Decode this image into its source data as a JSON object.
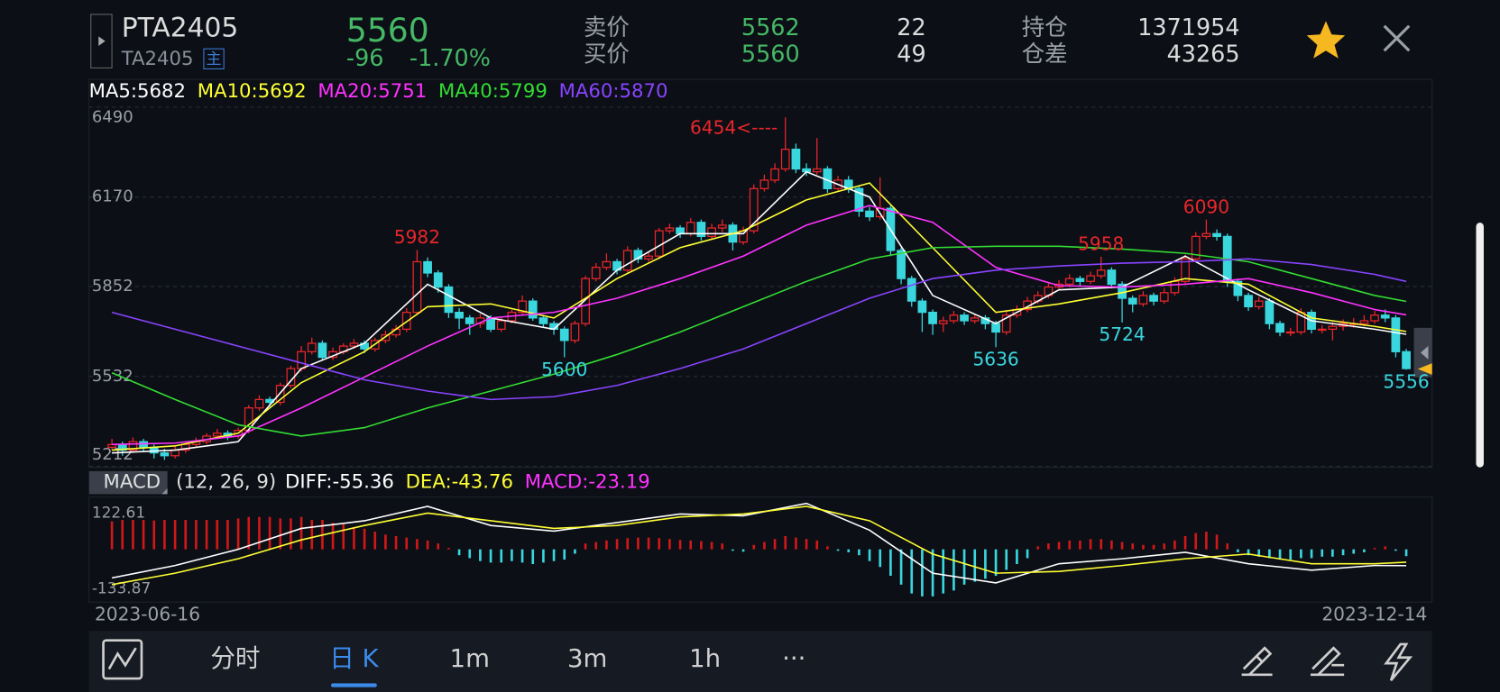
{
  "header": {
    "symbol": "PTA2405",
    "code": "TA2405",
    "main_tag": "主",
    "last_price": 5560,
    "change": -96,
    "change_pct": {
      "value": -1.7,
      "label": "-1.70%"
    },
    "ask_label": "卖价",
    "ask_price": 5562,
    "ask_volume": 22,
    "bid_label": "买价",
    "bid_price": 5560,
    "bid_volume": 49,
    "open_interest_label": "持仓",
    "open_interest": 1371954,
    "oi_change_label": "仓差",
    "oi_change": 43265
  },
  "chart_data": [
    {
      "type": "candlestick",
      "up_color": "#e8262a",
      "down_color": "#3ad6de",
      "ylim": [
        5212,
        6490
      ],
      "yticks": [
        6490,
        6170,
        5852,
        5532,
        5212
      ],
      "grid": true,
      "open": [
        5280,
        5290,
        5270,
        5300,
        5280,
        5260,
        5250,
        5270,
        5290,
        5300,
        5320,
        5330,
        5320,
        5340,
        5420,
        5450,
        5440,
        5500,
        5560,
        5620,
        5650,
        5600,
        5620,
        5640,
        5650,
        5630,
        5660,
        5680,
        5700,
        5760,
        5940,
        5900,
        5850,
        5760,
        5740,
        5720,
        5740,
        5700,
        5730,
        5760,
        5800,
        5740,
        5720,
        5700,
        5660,
        5720,
        5880,
        5920,
        5940,
        5910,
        5980,
        5950,
        5960,
        6050,
        6060,
        6040,
        6080,
        6030,
        6060,
        6070,
        6010,
        6050,
        6200,
        6230,
        6270,
        6340,
        6270,
        6260,
        6270,
        6200,
        6230,
        6200,
        6120,
        6100,
        6130,
        5980,
        5880,
        5800,
        5760,
        5720,
        5730,
        5750,
        5730,
        5740,
        5720,
        5690,
        5750,
        5770,
        5800,
        5820,
        5850,
        5860,
        5880,
        5870,
        5890,
        5910,
        5860,
        5810,
        5790,
        5820,
        5800,
        5830,
        5870,
        5950,
        6030,
        6040,
        6030,
        5870,
        5820,
        5780,
        5800,
        5720,
        5690,
        5690,
        5760,
        5700,
        5700,
        5710,
        5720,
        5720,
        5730,
        5750,
        5740,
        5620
      ],
      "high": [
        5310,
        5300,
        5315,
        5310,
        5290,
        5275,
        5285,
        5300,
        5315,
        5330,
        5345,
        5340,
        5350,
        5430,
        5465,
        5460,
        5510,
        5570,
        5640,
        5670,
        5660,
        5635,
        5650,
        5665,
        5660,
        5670,
        5695,
        5715,
        5775,
        5982,
        5955,
        5910,
        5860,
        5775,
        5750,
        5755,
        5750,
        5745,
        5770,
        5820,
        5810,
        5750,
        5730,
        5710,
        5730,
        5890,
        5935,
        5970,
        5950,
        5995,
        5990,
        5975,
        6060,
        6075,
        6070,
        6095,
        6090,
        6075,
        6090,
        6080,
        6065,
        6215,
        6250,
        6290,
        6454,
        6360,
        6290,
        6380,
        6280,
        6245,
        6245,
        6210,
        6135,
        6240,
        6140,
        5990,
        5890,
        5810,
        5770,
        5745,
        5765,
        5760,
        5755,
        5750,
        5730,
        5765,
        5785,
        5815,
        5835,
        5865,
        5875,
        5895,
        5890,
        5905,
        5958,
        5920,
        5870,
        5820,
        5835,
        5830,
        5845,
        5885,
        5965,
        6045,
        6090,
        6055,
        6040,
        5880,
        5830,
        5815,
        5810,
        5730,
        5705,
        5775,
        5770,
        5715,
        5725,
        5735,
        5740,
        5750,
        5765,
        5770,
        5750,
        5630
      ],
      "low": [
        5270,
        5250,
        5260,
        5265,
        5240,
        5235,
        5240,
        5260,
        5280,
        5290,
        5310,
        5305,
        5310,
        5330,
        5410,
        5425,
        5430,
        5490,
        5550,
        5610,
        5590,
        5590,
        5610,
        5630,
        5615,
        5620,
        5650,
        5670,
        5690,
        5750,
        5885,
        5830,
        5740,
        5700,
        5680,
        5705,
        5690,
        5690,
        5720,
        5750,
        5730,
        5705,
        5680,
        5600,
        5650,
        5710,
        5870,
        5910,
        5895,
        5900,
        5935,
        5940,
        5950,
        6040,
        6025,
        6030,
        6015,
        6020,
        6045,
        5980,
        6000,
        6040,
        6190,
        6220,
        6260,
        6255,
        6245,
        6250,
        6185,
        6190,
        6185,
        6100,
        6085,
        6090,
        5960,
        5860,
        5780,
        5690,
        5680,
        5690,
        5720,
        5715,
        5720,
        5700,
        5636,
        5680,
        5740,
        5760,
        5790,
        5810,
        5840,
        5850,
        5855,
        5860,
        5880,
        5845,
        5724,
        5760,
        5780,
        5785,
        5790,
        5820,
        5860,
        5940,
        6020,
        6015,
        5850,
        5800,
        5765,
        5770,
        5700,
        5675,
        5675,
        5680,
        5685,
        5685,
        5660,
        5695,
        5705,
        5710,
        5720,
        5725,
        5600,
        5556
      ],
      "close": [
        5290,
        5270,
        5300,
        5280,
        5260,
        5250,
        5270,
        5290,
        5300,
        5320,
        5330,
        5320,
        5340,
        5420,
        5450,
        5440,
        5500,
        5560,
        5620,
        5650,
        5600,
        5620,
        5640,
        5650,
        5630,
        5660,
        5680,
        5700,
        5760,
        5940,
        5900,
        5850,
        5760,
        5740,
        5720,
        5740,
        5700,
        5730,
        5760,
        5800,
        5740,
        5720,
        5700,
        5660,
        5720,
        5880,
        5920,
        5940,
        5910,
        5980,
        5950,
        5960,
        6050,
        6060,
        6040,
        6080,
        6030,
        6060,
        6070,
        6010,
        6050,
        6200,
        6230,
        6270,
        6340,
        6270,
        6260,
        6270,
        6200,
        6230,
        6200,
        6120,
        6100,
        6130,
        5980,
        5880,
        5800,
        5760,
        5720,
        5730,
        5750,
        5730,
        5740,
        5720,
        5690,
        5750,
        5770,
        5800,
        5820,
        5850,
        5860,
        5880,
        5870,
        5890,
        5910,
        5860,
        5810,
        5790,
        5820,
        5800,
        5830,
        5870,
        5950,
        6030,
        6040,
        6030,
        5870,
        5820,
        5780,
        5800,
        5720,
        5690,
        5690,
        5760,
        5700,
        5700,
        5710,
        5720,
        5720,
        5730,
        5750,
        5740,
        5620,
        5560
      ],
      "series": [
        {
          "name": "MA5",
          "label": "MA5:5682",
          "color": "#ffffff",
          "x": [
            0,
            6,
            12,
            18,
            24,
            30,
            36,
            42,
            48,
            54,
            60,
            66,
            72,
            78,
            84,
            90,
            96,
            102,
            108,
            114,
            120,
            123
          ],
          "values": [
            5260,
            5270,
            5300,
            5560,
            5650,
            5860,
            5740,
            5700,
            5910,
            6040,
            6040,
            6260,
            6170,
            5820,
            5720,
            5840,
            5850,
            5960,
            5840,
            5730,
            5700,
            5682
          ]
        },
        {
          "name": "MA10",
          "label": "MA10:5692",
          "color": "#ffff33",
          "x": [
            0,
            6,
            12,
            18,
            24,
            30,
            36,
            42,
            48,
            54,
            60,
            66,
            72,
            78,
            84,
            90,
            96,
            102,
            108,
            114,
            120,
            123
          ],
          "values": [
            5270,
            5285,
            5330,
            5510,
            5620,
            5780,
            5790,
            5740,
            5880,
            5990,
            6050,
            6160,
            6220,
            5990,
            5760,
            5790,
            5830,
            5880,
            5860,
            5740,
            5710,
            5692
          ]
        },
        {
          "name": "MA20",
          "label": "MA20:5751",
          "color": "#ff33ff",
          "x": [
            0,
            6,
            12,
            18,
            24,
            30,
            36,
            42,
            48,
            54,
            60,
            66,
            72,
            78,
            84,
            90,
            96,
            102,
            108,
            114,
            120,
            123
          ],
          "values": [
            5290,
            5295,
            5320,
            5420,
            5530,
            5640,
            5740,
            5760,
            5810,
            5880,
            5960,
            6070,
            6140,
            6080,
            5920,
            5855,
            5850,
            5860,
            5880,
            5830,
            5770,
            5751
          ]
        },
        {
          "name": "MA40",
          "label": "MA40:5799",
          "color": "#33dd33",
          "x": [
            0,
            6,
            12,
            18,
            24,
            30,
            36,
            42,
            48,
            54,
            60,
            66,
            72,
            78,
            84,
            90,
            96,
            102,
            108,
            114,
            120,
            123
          ],
          "values": [
            5545,
            5450,
            5360,
            5320,
            5350,
            5420,
            5480,
            5540,
            5610,
            5690,
            5780,
            5870,
            5950,
            5990,
            5995,
            5995,
            5985,
            5970,
            5940,
            5880,
            5820,
            5799
          ]
        },
        {
          "name": "MA60",
          "label": "MA60:5870",
          "color": "#8844ff",
          "x": [
            0,
            6,
            12,
            18,
            24,
            30,
            36,
            42,
            48,
            54,
            60,
            66,
            72,
            78,
            84,
            90,
            96,
            102,
            108,
            114,
            120,
            123
          ],
          "values": [
            5760,
            5700,
            5640,
            5580,
            5520,
            5480,
            5450,
            5460,
            5500,
            5560,
            5630,
            5720,
            5810,
            5880,
            5910,
            5925,
            5935,
            5940,
            5950,
            5930,
            5895,
            5870
          ]
        }
      ],
      "annotations": [
        {
          "index": 29,
          "value": 5982,
          "at": "high",
          "color": "#e8262a"
        },
        {
          "index": 64,
          "value": 6454,
          "label": "6454<----",
          "at": "high",
          "color": "#e8262a"
        },
        {
          "index": 43,
          "value": 5600,
          "at": "low",
          "color": "#3ad6de"
        },
        {
          "index": 84,
          "value": 5636,
          "at": "low",
          "color": "#3ad6de"
        },
        {
          "index": 94,
          "value": 5958,
          "at": "high",
          "color": "#e8262a"
        },
        {
          "index": 96,
          "value": 5724,
          "at": "low",
          "color": "#3ad6de"
        },
        {
          "index": 104,
          "value": 6090,
          "at": "high",
          "color": "#e8262a"
        },
        {
          "index": 123,
          "value": 5556,
          "at": "low",
          "color": "#3ad6de"
        }
      ]
    },
    {
      "type": "macd",
      "title": "MACD",
      "params": "(12, 26, 9)",
      "up_color": "#d01818",
      "down_color": "#3ad6de",
      "ylim": [
        -133.87,
        122.61
      ],
      "yticks": [
        122.61,
        -133.87
      ],
      "histogram": [
        95,
        100,
        100,
        100,
        98,
        100,
        100,
        100,
        100,
        100,
        100,
        100,
        105,
        110,
        110,
        110,
        105,
        105,
        110,
        100,
        100,
        90,
        85,
        75,
        70,
        60,
        50,
        45,
        40,
        35,
        30,
        20,
        5,
        -20,
        -30,
        -40,
        -45,
        -45,
        -40,
        -45,
        -50,
        -45,
        -40,
        -35,
        -15,
        20,
        25,
        30,
        35,
        38,
        40,
        40,
        38,
        35,
        32,
        30,
        28,
        25,
        20,
        -5,
        -8,
        15,
        25,
        35,
        45,
        40,
        35,
        30,
        10,
        -5,
        -10,
        -20,
        -40,
        -60,
        -90,
        -120,
        -150,
        -160,
        -160,
        -150,
        -140,
        -120,
        -110,
        -100,
        -90,
        -70,
        -50,
        -30,
        10,
        20,
        25,
        30,
        30,
        35,
        35,
        30,
        25,
        20,
        15,
        15,
        20,
        30,
        45,
        55,
        60,
        50,
        20,
        -10,
        -20,
        -25,
        -30,
        -35,
        -35,
        -30,
        -30,
        -25,
        -25,
        -20,
        -15,
        -10,
        5,
        10,
        -5,
        -23.19
      ],
      "histogram_label": "MACD:-23.19",
      "histogram_label_color": "#ff33ff",
      "series": [
        {
          "name": "DIFF",
          "label": "DIFF:-55.36",
          "color": "#ffffff",
          "x": [
            0,
            6,
            12,
            18,
            24,
            30,
            36,
            42,
            48,
            54,
            60,
            66,
            72,
            78,
            84,
            90,
            96,
            102,
            108,
            114,
            120,
            123
          ],
          "values": [
            -97,
            -55,
            0,
            71,
            97,
            146,
            81,
            62,
            91,
            120,
            114,
            156,
            65,
            -81,
            -114,
            -49,
            -32,
            -10,
            -49,
            -71,
            -55,
            -55.36
          ]
        },
        {
          "name": "DEA",
          "label": "DEA:-43.76",
          "color": "#ffff33",
          "x": [
            0,
            6,
            12,
            18,
            24,
            30,
            36,
            42,
            48,
            54,
            60,
            66,
            72,
            78,
            84,
            90,
            96,
            102,
            108,
            114,
            120,
            123
          ],
          "values": [
            -120,
            -81,
            -32,
            32,
            81,
            123,
            97,
            71,
            81,
            110,
            120,
            146,
            97,
            -16,
            -81,
            -75,
            -55,
            -32,
            -16,
            -49,
            -49,
            -43.76
          ]
        }
      ],
      "date_start": "2023-06-16",
      "date_end": "2023-12-14"
    }
  ],
  "toolbar": {
    "tabs": [
      "分时",
      "日 K",
      "1m",
      "3m",
      "1h"
    ],
    "active_tab": 1
  }
}
